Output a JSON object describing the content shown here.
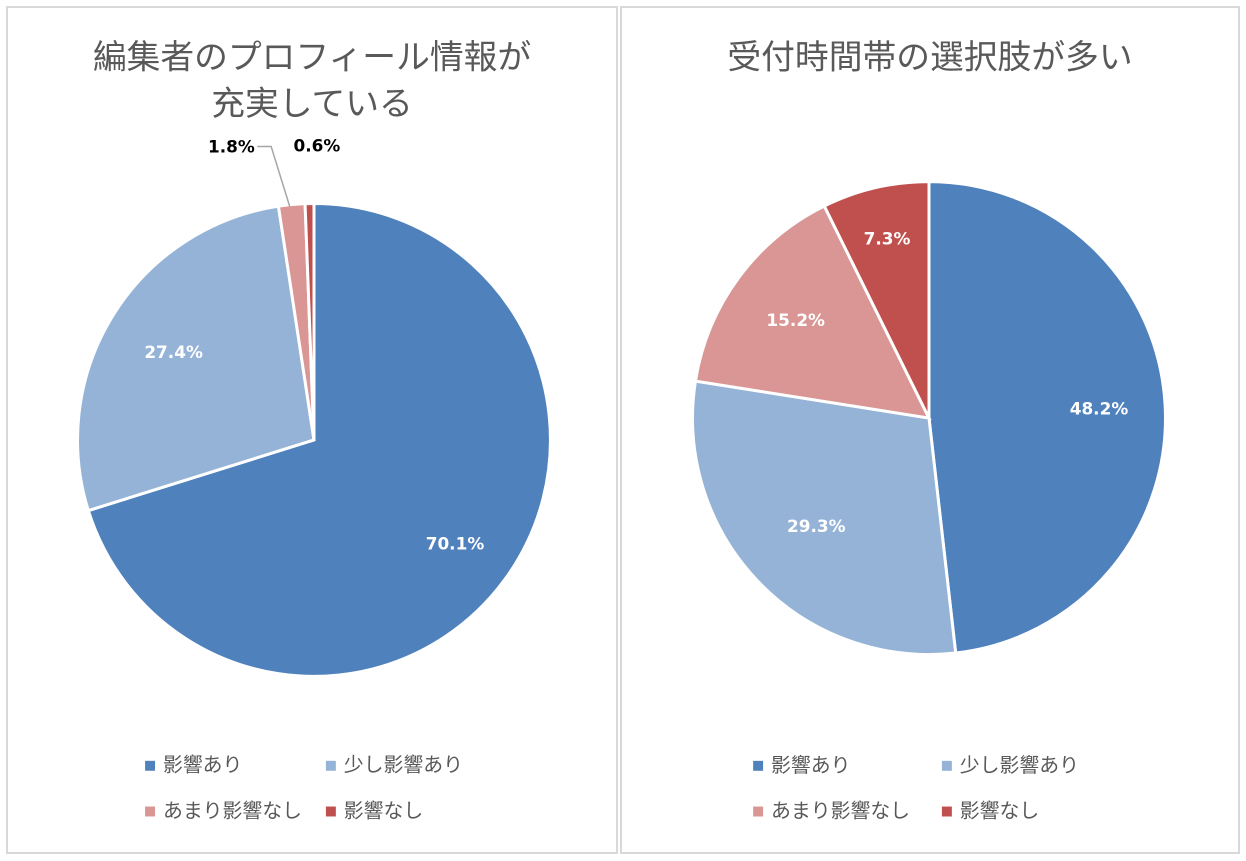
{
  "chart_data": [
    {
      "type": "pie",
      "title_lines": [
        "編集者のプロフィール情報が",
        "充実している"
      ],
      "categories": [
        "影響あり",
        "少し影響あり",
        "あまり影響なし",
        "影響なし"
      ],
      "values": [
        70.1,
        27.4,
        1.8,
        0.6
      ],
      "labels": [
        "70.1%",
        "27.4%",
        "1.8%",
        "0.6%"
      ],
      "colors": [
        "#4f81bd",
        "#95b3d7",
        "#d99694",
        "#c0504d"
      ],
      "legend": "bottom"
    },
    {
      "type": "pie",
      "title_lines": [
        "受付時間帯の選択肢が多い"
      ],
      "categories": [
        "影響あり",
        "少し影響あり",
        "あまり影響なし",
        "影響なし"
      ],
      "values": [
        48.2,
        29.3,
        15.2,
        7.3
      ],
      "labels": [
        "48.2%",
        "29.3%",
        "15.2%",
        "7.3%"
      ],
      "colors": [
        "#4f81bd",
        "#95b3d7",
        "#d99694",
        "#c0504d"
      ],
      "legend": "bottom"
    }
  ]
}
